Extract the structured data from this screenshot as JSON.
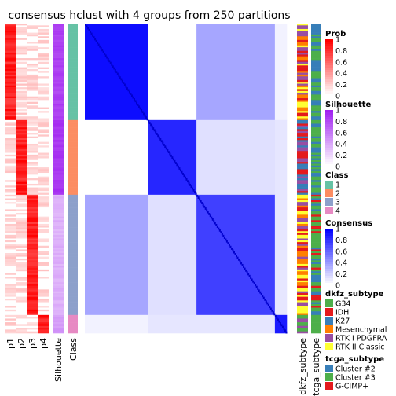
{
  "chart_data": {
    "type": "heatmap",
    "title": "consensus hclust with 4 groups from 250 partitions",
    "annotation_columns_left": [
      "p1",
      "p2",
      "p3",
      "p4",
      "Silhouette",
      "Class"
    ],
    "annotation_columns_right": [
      "dkfz_subtype",
      "tcga_subtype"
    ],
    "groups": [
      {
        "class": "1",
        "n_rows": 53
      },
      {
        "class": "2",
        "n_rows": 41
      },
      {
        "class": "3",
        "n_rows": 66
      },
      {
        "class": "4",
        "n_rows": 10
      }
    ],
    "block_consensus": [
      [
        0.95,
        0.0,
        0.35,
        0.05
      ],
      [
        0.0,
        0.85,
        0.12,
        0.1
      ],
      [
        0.35,
        0.12,
        0.75,
        0.1
      ],
      [
        0.05,
        0.1,
        0.1,
        0.9
      ]
    ],
    "legends": [
      {
        "title": "Prob",
        "type": "gradient",
        "ticks": [
          "1",
          "0.8",
          "0.6",
          "0.4",
          "0.2",
          "0"
        ],
        "color_high": "#ff0000",
        "color_low": "#ffffff"
      },
      {
        "title": "Silhouette",
        "type": "gradient",
        "ticks": [
          "1",
          "0.8",
          "0.6",
          "0.4",
          "0.2",
          "0"
        ],
        "color_high": "#a020f0",
        "color_low": "#ffffff"
      },
      {
        "title": "Class",
        "type": "discrete",
        "items": [
          {
            "label": "1",
            "color": "#66c2a5"
          },
          {
            "label": "2",
            "color": "#fc8d62"
          },
          {
            "label": "3",
            "color": "#8da0cb"
          },
          {
            "label": "4",
            "color": "#e78ac3"
          }
        ]
      },
      {
        "title": "Consensus",
        "type": "gradient",
        "ticks": [
          "1",
          "0.8",
          "0.6",
          "0.4",
          "0.2",
          "0"
        ],
        "color_high": "#0000ff",
        "color_low": "#ffffff"
      },
      {
        "title": "dkfz_subtype",
        "type": "discrete",
        "items": [
          {
            "label": "G34",
            "color": "#4daf4a"
          },
          {
            "label": "IDH",
            "color": "#e41a1c"
          },
          {
            "label": "K27",
            "color": "#377eb8"
          },
          {
            "label": "Mesenchymal",
            "color": "#ff7f00"
          },
          {
            "label": "RTK I PDGFRA",
            "color": "#984ea3"
          },
          {
            "label": "RTK II Classic",
            "color": "#ffff33"
          }
        ]
      },
      {
        "title": "tcga_subtype",
        "type": "discrete",
        "items": [
          {
            "label": "Cluster #2",
            "color": "#377eb8"
          },
          {
            "label": "Cluster #3",
            "color": "#4daf4a"
          },
          {
            "label": "G-CIMP+",
            "color": "#e41a1c"
          }
        ]
      }
    ]
  }
}
